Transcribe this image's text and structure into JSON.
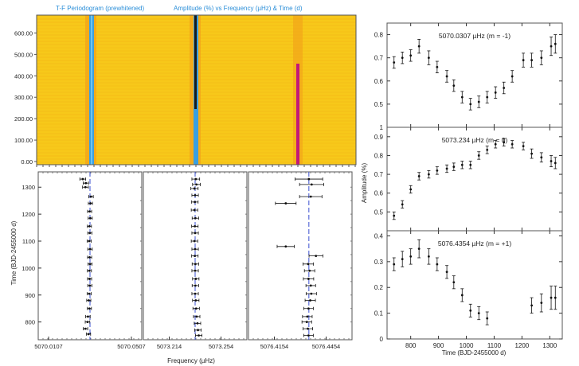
{
  "heatmap": {
    "title_left": "T-F Periodogram (prewhitened)",
    "title_right": "Amplitude (%) vs Frequency (µHz) & Time (d)",
    "y_ticks": [
      "0.00",
      "100.00",
      "200.00",
      "300.00",
      "400.00",
      "500.00",
      "600.00"
    ],
    "y_range": [
      0,
      650
    ],
    "colors": {
      "background": "#f7c81a",
      "bar1": "#3a9fe0",
      "bar2": "#1a1a1a",
      "bar3": "#c2187a"
    }
  },
  "freq_panels": {
    "xlabel": "Frequency (µHz)",
    "ylabel": "Time (BJD-2455000 d)",
    "y_ticks": [
      "800",
      "900",
      "1000",
      "1100",
      "1200",
      "1300"
    ],
    "y_range": [
      740,
      1345
    ],
    "panels": [
      {
        "x_range": [
          5070.0057,
          5070.0557
        ],
        "x_ticks": [
          "5070.0107",
          "5070.0507"
        ],
        "center": 5070.0307,
        "points": [
          {
            "t": 1330,
            "f": 5070.0272,
            "e": 0.0014
          },
          {
            "t": 1315,
            "f": 5070.0287,
            "e": 0.0013
          },
          {
            "t": 1300,
            "f": 5070.0285,
            "e": 0.0014
          },
          {
            "t": 1265,
            "f": 5070.0312,
            "e": 0.0011
          },
          {
            "t": 1240,
            "f": 5070.0309,
            "e": 0.001
          },
          {
            "t": 1210,
            "f": 5070.0305,
            "e": 0.001
          },
          {
            "t": 1185,
            "f": 5070.0308,
            "e": 0.001
          },
          {
            "t": 1155,
            "f": 5070.0304,
            "e": 0.001
          },
          {
            "t": 1130,
            "f": 5070.0306,
            "e": 0.001
          },
          {
            "t": 1100,
            "f": 5070.0303,
            "e": 0.001
          },
          {
            "t": 1070,
            "f": 5070.0307,
            "e": 0.0011
          },
          {
            "t": 1040,
            "f": 5070.0305,
            "e": 0.001
          },
          {
            "t": 1015,
            "f": 5070.0307,
            "e": 0.001
          },
          {
            "t": 990,
            "f": 5070.0304,
            "e": 0.001
          },
          {
            "t": 960,
            "f": 5070.0305,
            "e": 0.001
          },
          {
            "t": 935,
            "f": 5070.0306,
            "e": 0.001
          },
          {
            "t": 905,
            "f": 5070.0303,
            "e": 0.001
          },
          {
            "t": 880,
            "f": 5070.0301,
            "e": 0.001
          },
          {
            "t": 850,
            "f": 5070.0304,
            "e": 0.001
          },
          {
            "t": 820,
            "f": 5070.0297,
            "e": 0.0011
          },
          {
            "t": 800,
            "f": 5070.0295,
            "e": 0.0011
          },
          {
            "t": 775,
            "f": 5070.0285,
            "e": 0.0011
          },
          {
            "t": 755,
            "f": 5070.03,
            "e": 0.001
          }
        ]
      },
      {
        "x_range": [
          5073.194,
          5073.274
        ],
        "x_ticks": [
          "5073.214",
          "5073.254"
        ],
        "center": 5073.234,
        "points": [
          {
            "t": 1330,
            "f": 5073.2345,
            "e": 0.003
          },
          {
            "t": 1310,
            "f": 5073.235,
            "e": 0.003
          },
          {
            "t": 1295,
            "f": 5073.2335,
            "e": 0.0028
          },
          {
            "t": 1270,
            "f": 5073.234,
            "e": 0.0025
          },
          {
            "t": 1245,
            "f": 5073.2338,
            "e": 0.0025
          },
          {
            "t": 1215,
            "f": 5073.2335,
            "e": 0.0025
          },
          {
            "t": 1185,
            "f": 5073.2342,
            "e": 0.0025
          },
          {
            "t": 1155,
            "f": 5073.2338,
            "e": 0.0025
          },
          {
            "t": 1130,
            "f": 5073.234,
            "e": 0.0025
          },
          {
            "t": 1100,
            "f": 5073.2335,
            "e": 0.0025
          },
          {
            "t": 1070,
            "f": 5073.234,
            "e": 0.0025
          },
          {
            "t": 1045,
            "f": 5073.2338,
            "e": 0.0025
          },
          {
            "t": 1015,
            "f": 5073.2342,
            "e": 0.0025
          },
          {
            "t": 990,
            "f": 5073.234,
            "e": 0.0025
          },
          {
            "t": 960,
            "f": 5073.2345,
            "e": 0.0025
          },
          {
            "t": 935,
            "f": 5073.2342,
            "e": 0.0025
          },
          {
            "t": 905,
            "f": 5073.234,
            "e": 0.0025
          },
          {
            "t": 880,
            "f": 5073.2345,
            "e": 0.0025
          },
          {
            "t": 850,
            "f": 5073.2348,
            "e": 0.0025
          },
          {
            "t": 820,
            "f": 5073.2352,
            "e": 0.0025
          },
          {
            "t": 795,
            "f": 5073.2358,
            "e": 0.0025
          },
          {
            "t": 770,
            "f": 5073.2362,
            "e": 0.0025
          },
          {
            "t": 750,
            "f": 5073.2368,
            "e": 0.0025
          }
        ]
      },
      {
        "x_range": [
          5076.4004,
          5076.4604
        ],
        "x_ticks": [
          "5076.4154",
          "5076.4454"
        ],
        "center": 5076.4354,
        "points": [
          {
            "t": 1330,
            "f": 5076.4354,
            "e": 0.008
          },
          {
            "t": 1310,
            "f": 5076.437,
            "e": 0.007
          },
          {
            "t": 1265,
            "f": 5076.4365,
            "e": 0.0065
          },
          {
            "t": 1240,
            "f": 5076.422,
            "e": 0.006
          },
          {
            "t": 1080,
            "f": 5076.422,
            "e": 0.005
          },
          {
            "t": 1045,
            "f": 5076.4395,
            "e": 0.004
          },
          {
            "t": 1015,
            "f": 5076.435,
            "e": 0.003
          },
          {
            "t": 990,
            "f": 5076.4358,
            "e": 0.003
          },
          {
            "t": 960,
            "f": 5076.4352,
            "e": 0.003
          },
          {
            "t": 935,
            "f": 5076.4365,
            "e": 0.0028
          },
          {
            "t": 905,
            "f": 5076.4368,
            "e": 0.003
          },
          {
            "t": 880,
            "f": 5076.4362,
            "e": 0.003
          },
          {
            "t": 850,
            "f": 5076.4352,
            "e": 0.0028
          },
          {
            "t": 820,
            "f": 5076.4345,
            "e": 0.0028
          },
          {
            "t": 800,
            "f": 5076.4342,
            "e": 0.0028
          },
          {
            "t": 775,
            "f": 5076.4348,
            "e": 0.0028
          },
          {
            "t": 750,
            "f": 5076.4352,
            "e": 0.0028
          }
        ]
      }
    ]
  },
  "amp_panels": {
    "xlabel": "Time (BJD-2455000 d)",
    "ylabel": "Amplitude (%)",
    "x_range": [
      715,
      1345
    ],
    "x_ticks": [
      800,
      900,
      1000,
      1100,
      1200,
      1300
    ],
    "panels": [
      {
        "label": "5070.0307 µHz (m = -1)",
        "y_range": [
          0.4,
          0.85
        ],
        "y_ticks": [
          "0.5",
          "0.6",
          "0.7",
          "0.8"
        ],
        "bottom_tick": "1",
        "points": [
          {
            "t": 740,
            "a": 0.68,
            "e": 0.025
          },
          {
            "t": 770,
            "a": 0.7,
            "e": 0.025
          },
          {
            "t": 800,
            "a": 0.71,
            "e": 0.025
          },
          {
            "t": 830,
            "a": 0.75,
            "e": 0.03
          },
          {
            "t": 865,
            "a": 0.7,
            "e": 0.03
          },
          {
            "t": 895,
            "a": 0.66,
            "e": 0.025
          },
          {
            "t": 930,
            "a": 0.62,
            "e": 0.025
          },
          {
            "t": 955,
            "a": 0.58,
            "e": 0.025
          },
          {
            "t": 985,
            "a": 0.53,
            "e": 0.025
          },
          {
            "t": 1015,
            "a": 0.5,
            "e": 0.025
          },
          {
            "t": 1045,
            "a": 0.51,
            "e": 0.025
          },
          {
            "t": 1075,
            "a": 0.53,
            "e": 0.025
          },
          {
            "t": 1105,
            "a": 0.55,
            "e": 0.025
          },
          {
            "t": 1135,
            "a": 0.57,
            "e": 0.025
          },
          {
            "t": 1165,
            "a": 0.62,
            "e": 0.025
          },
          {
            "t": 1205,
            "a": 0.69,
            "e": 0.03
          },
          {
            "t": 1235,
            "a": 0.69,
            "e": 0.03
          },
          {
            "t": 1270,
            "a": 0.7,
            "e": 0.03
          },
          {
            "t": 1305,
            "a": 0.75,
            "e": 0.04
          },
          {
            "t": 1320,
            "a": 0.76,
            "e": 0.04
          }
        ]
      },
      {
        "label": "5073.234 µHz (m = 0)",
        "y_range": [
          0.4,
          0.95
        ],
        "y_ticks": [
          "0.5",
          "0.6",
          "0.7",
          "0.8",
          "0.9"
        ],
        "bottom_tick": "",
        "points": [
          {
            "t": 740,
            "a": 0.48,
            "e": 0.02
          },
          {
            "t": 770,
            "a": 0.54,
            "e": 0.02
          },
          {
            "t": 800,
            "a": 0.62,
            "e": 0.02
          },
          {
            "t": 830,
            "a": 0.69,
            "e": 0.02
          },
          {
            "t": 865,
            "a": 0.7,
            "e": 0.02
          },
          {
            "t": 895,
            "a": 0.72,
            "e": 0.02
          },
          {
            "t": 930,
            "a": 0.73,
            "e": 0.02
          },
          {
            "t": 955,
            "a": 0.74,
            "e": 0.02
          },
          {
            "t": 985,
            "a": 0.75,
            "e": 0.02
          },
          {
            "t": 1015,
            "a": 0.75,
            "e": 0.02
          },
          {
            "t": 1045,
            "a": 0.8,
            "e": 0.02
          },
          {
            "t": 1075,
            "a": 0.83,
            "e": 0.02
          },
          {
            "t": 1105,
            "a": 0.86,
            "e": 0.02
          },
          {
            "t": 1135,
            "a": 0.87,
            "e": 0.02
          },
          {
            "t": 1165,
            "a": 0.86,
            "e": 0.02
          },
          {
            "t": 1205,
            "a": 0.85,
            "e": 0.02
          },
          {
            "t": 1235,
            "a": 0.81,
            "e": 0.025
          },
          {
            "t": 1270,
            "a": 0.79,
            "e": 0.025
          },
          {
            "t": 1305,
            "a": 0.77,
            "e": 0.03
          },
          {
            "t": 1320,
            "a": 0.76,
            "e": 0.03
          }
        ]
      },
      {
        "label": "5076.4354 µHz (m = +1)",
        "y_range": [
          0,
          0.42
        ],
        "y_ticks": [
          "0",
          "0.1",
          "0.2",
          "0.3",
          "0.4"
        ],
        "bottom_tick": "",
        "points": [
          {
            "t": 740,
            "a": 0.29,
            "e": 0.025
          },
          {
            "t": 770,
            "a": 0.31,
            "e": 0.03
          },
          {
            "t": 800,
            "a": 0.32,
            "e": 0.03
          },
          {
            "t": 830,
            "a": 0.35,
            "e": 0.035
          },
          {
            "t": 865,
            "a": 0.32,
            "e": 0.03
          },
          {
            "t": 895,
            "a": 0.29,
            "e": 0.025
          },
          {
            "t": 930,
            "a": 0.26,
            "e": 0.025
          },
          {
            "t": 955,
            "a": 0.22,
            "e": 0.025
          },
          {
            "t": 985,
            "a": 0.17,
            "e": 0.025
          },
          {
            "t": 1015,
            "a": 0.11,
            "e": 0.025
          },
          {
            "t": 1045,
            "a": 0.1,
            "e": 0.025
          },
          {
            "t": 1075,
            "a": 0.08,
            "e": 0.025
          },
          {
            "t": 1235,
            "a": 0.13,
            "e": 0.03
          },
          {
            "t": 1270,
            "a": 0.14,
            "e": 0.035
          },
          {
            "t": 1305,
            "a": 0.16,
            "e": 0.045
          },
          {
            "t": 1320,
            "a": 0.16,
            "e": 0.045
          }
        ]
      }
    ]
  },
  "chart_data": [
    {
      "type": "heatmap",
      "title": "Amplitude (%) vs Frequency (µHz) & Time (d)",
      "subtitle": "T-F Periodogram (prewhitened)",
      "ylabel": "",
      "ylim": [
        0,
        650
      ],
      "y_ticks": [
        0,
        100,
        200,
        300,
        400,
        500,
        600
      ],
      "features": [
        "strong ridge near 5070.03 µHz",
        "strong ridge near 5073.23 µHz",
        "weaker ridge near 5076.44 µHz"
      ]
    },
    {
      "type": "scatter",
      "title": "",
      "xlabel": "Frequency (µHz)",
      "ylabel": "Time (BJD-2455000 d)",
      "series": [
        {
          "name": "5070.0307"
        },
        {
          "name": "5073.234"
        },
        {
          "name": "5076.4354"
        }
      ]
    },
    {
      "type": "scatter",
      "title": "",
      "xlabel": "Time (BJD-2455000 d)",
      "ylabel": "Amplitude (%)",
      "series": [
        {
          "name": "5070.0307 µHz (m = -1)"
        },
        {
          "name": "5073.234 µHz (m = 0)"
        },
        {
          "name": "5076.4354 µHz (m = +1)"
        }
      ]
    }
  ]
}
